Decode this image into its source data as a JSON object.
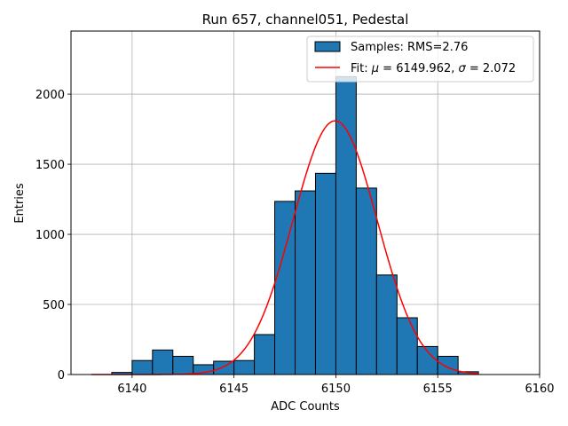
{
  "chart_data": {
    "type": "bar",
    "title": "Run 657, channel051, Pedestal",
    "xlabel": "ADC Counts",
    "ylabel": "Entries",
    "xlim": [
      6137,
      6160
    ],
    "ylim": [
      0,
      2450
    ],
    "xticks": [
      6140,
      6145,
      6150,
      6155,
      6160
    ],
    "yticks": [
      0,
      500,
      1000,
      1500,
      2000
    ],
    "grid": true,
    "legend_position": "top-right",
    "histogram": {
      "name": "Samples: RMS=2.76",
      "color": "#1f77b4",
      "bin_width": 1,
      "bins": [
        {
          "x0": 6139,
          "count": 15
        },
        {
          "x0": 6140,
          "count": 100
        },
        {
          "x0": 6141,
          "count": 175
        },
        {
          "x0": 6142,
          "count": 130
        },
        {
          "x0": 6143,
          "count": 70
        },
        {
          "x0": 6144,
          "count": 95
        },
        {
          "x0": 6145,
          "count": 100
        },
        {
          "x0": 6146,
          "count": 285
        },
        {
          "x0": 6147,
          "count": 1235
        },
        {
          "x0": 6148,
          "count": 1310
        },
        {
          "x0": 6149,
          "count": 1435
        },
        {
          "x0": 6150,
          "count": 2125
        },
        {
          "x0": 6151,
          "count": 1330
        },
        {
          "x0": 6152,
          "count": 710
        },
        {
          "x0": 6153,
          "count": 405
        },
        {
          "x0": 6154,
          "count": 200
        },
        {
          "x0": 6155,
          "count": 130
        },
        {
          "x0": 6156,
          "count": 20
        }
      ]
    },
    "fit": {
      "name_prefix": "Fit: ",
      "name_mu": "μ",
      "name_mid": " = 6149.962, ",
      "name_sigma": "σ",
      "name_suffix": " = 2.072",
      "color": "#ff0000",
      "mu": 6149.962,
      "sigma": 2.072,
      "amplitude": 1810,
      "x_range": [
        6138,
        6157
      ]
    }
  }
}
